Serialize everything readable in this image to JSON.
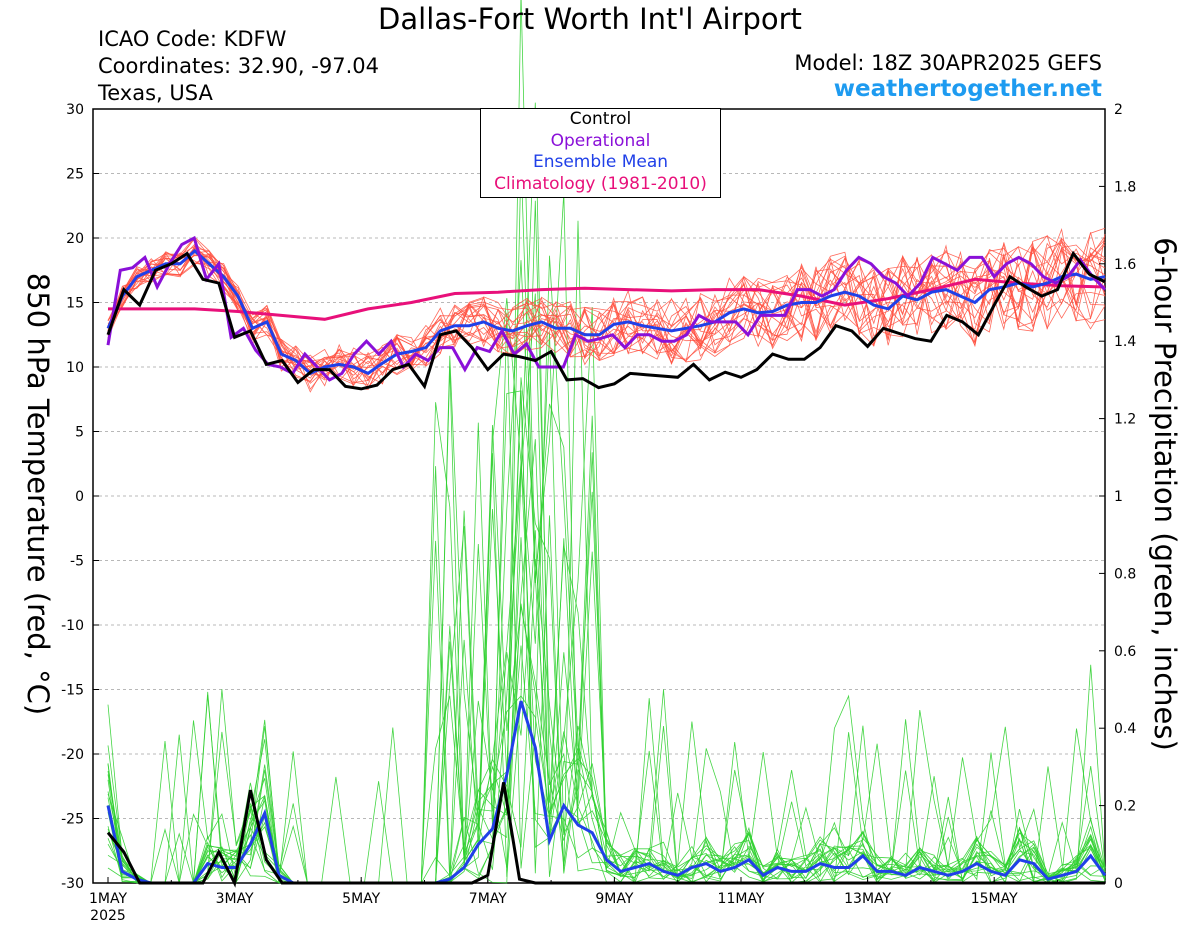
{
  "header": {
    "title": "Dallas-Fort Worth Int'l Airport",
    "icao": "ICAO Code: KDFW",
    "coordinates": "Coordinates: 32.90, -97.04",
    "region": "Texas, USA",
    "model": "Model: 18Z 30APR2025 GEFS",
    "brand": "weathertogether.net"
  },
  "colors": {
    "control": "#000000",
    "operational": "#8a10d8",
    "ensemble_mean": "#2040e8",
    "climatology": "#e8107a",
    "temperature_members": "#ff5040",
    "precip_members": "#30d030",
    "brand": "#1e9bf0"
  },
  "chart_data": {
    "type": "line",
    "title": "Dallas-Fort Worth Int'l Airport",
    "ylabel_left": "850 hPa Temperature (red, °C)",
    "ylabel_right": "6-hour Precipitation (green, inches)",
    "x_unit": "days since 1MAY 00Z, 6-hourly steps",
    "y_left_range": [
      -30,
      30
    ],
    "y_right_range": [
      0,
      2
    ],
    "x_range": [
      0,
      15.75
    ],
    "y_left_ticks": [
      "30",
      "25",
      "20",
      "15",
      "10",
      "5",
      "0",
      "-5",
      "-10",
      "-15",
      "-20",
      "-25",
      "-30"
    ],
    "y_right_ticks": [
      "2",
      "1.8",
      "1.6",
      "1.4",
      "1.2",
      "1",
      "0.8",
      "0.6",
      "0.4",
      "0.2",
      "0"
    ],
    "x_ticks": [
      {
        "x": 0,
        "label": "1MAY",
        "sub": "2025"
      },
      {
        "x": 2,
        "label": "3MAY"
      },
      {
        "x": 4,
        "label": "5MAY"
      },
      {
        "x": 6,
        "label": "7MAY"
      },
      {
        "x": 8,
        "label": "9MAY"
      },
      {
        "x": 10,
        "label": "11MAY"
      },
      {
        "x": 12,
        "label": "13MAY"
      },
      {
        "x": 14,
        "label": "15MAY"
      }
    ],
    "legend": [
      "Control",
      "Operational",
      "Ensemble Mean",
      "Climatology (1981-2010)"
    ],
    "grid": "horizontal dashed",
    "temperature": {
      "control": [
        12.5,
        16,
        14.8,
        17.5,
        18,
        18.8,
        16.8,
        16.5,
        12.3,
        12.8,
        10.2,
        10.5,
        8.8,
        9.8,
        9.8,
        8.5,
        8.3,
        8.6,
        9.8,
        10.2,
        8.5,
        12.5,
        12.8,
        11.5,
        9.8,
        11,
        10.8,
        10.5,
        11.2,
        9,
        9.1,
        8.4,
        8.7,
        9.5,
        9.4,
        9.3,
        9.2,
        10.2,
        9,
        9.6,
        9.2,
        9.8,
        11,
        10.6,
        10.6,
        11.5,
        13.2,
        12.8,
        11.6,
        13,
        12.6,
        12.2,
        12,
        14,
        13.5,
        12.5,
        14.8,
        17,
        16.2,
        15.5,
        16,
        18.8,
        17.2,
        16.6
      ],
      "operational": [
        11.7,
        17.5,
        17.7,
        18.5,
        16.2,
        18,
        19.5,
        20,
        16.8,
        18,
        12.3,
        13,
        11.3,
        10.2,
        10,
        9.5,
        11,
        10,
        9,
        9.5,
        11,
        12,
        11,
        12,
        10,
        11,
        10.5,
        11.5,
        11.5,
        9.8,
        11.5,
        11.2,
        12.8,
        11,
        11.8,
        10,
        10,
        10,
        12.5,
        12,
        12.2,
        12.5,
        11.5,
        12.5,
        12.5,
        12,
        12,
        12.5,
        14,
        13.5,
        13.5,
        13.5,
        12.5,
        14,
        14,
        14,
        16,
        16,
        15.5,
        16,
        17.5,
        18.5,
        18,
        17,
        16.5,
        15.5,
        16.5,
        18.5,
        18,
        17.5,
        18.5,
        18.5,
        17,
        18,
        18.5,
        18,
        17,
        16.5,
        17,
        18.3,
        17,
        16
      ],
      "ensemble_mean": [
        13,
        15.5,
        17,
        17.5,
        18,
        18,
        19,
        18,
        17,
        15.5,
        13,
        13.5,
        11,
        10.5,
        9.5,
        10,
        10.2,
        10,
        9.5,
        10.3,
        11,
        11.2,
        11.5,
        12.8,
        13.2,
        13.2,
        13.5,
        13,
        12.8,
        13.2,
        13.5,
        13,
        13,
        12.5,
        12.5,
        13.3,
        13.5,
        13.2,
        13,
        12.8,
        13,
        13.2,
        13.5,
        14.2,
        14.5,
        14.2,
        14.3,
        14.8,
        15,
        15,
        15.5,
        15.8,
        15.5,
        14.8,
        14.5,
        15.5,
        15.2,
        15.8,
        16,
        15.5,
        15,
        16,
        16.2,
        16.5,
        16.2,
        16.5,
        17,
        17.2,
        16.8,
        17
      ],
      "climatology": [
        14.5,
        14.5,
        14.5,
        14.3,
        14,
        13.7,
        14.5,
        15,
        15.7,
        15.8,
        16,
        16.1,
        16,
        15.9,
        16,
        16,
        15.5,
        14.8,
        15.3,
        16,
        16.8,
        16.5,
        16.3,
        16.2
      ],
      "members": 20
    },
    "precipitation": {
      "control": [
        0.13,
        0.08,
        0,
        0,
        0,
        0,
        0,
        0.08,
        0,
        0.24,
        0.06,
        0,
        0,
        0,
        0,
        0,
        0,
        0,
        0,
        0,
        0,
        0,
        0,
        0,
        0.02,
        0.26,
        0.01,
        0,
        0,
        0,
        0,
        0,
        0,
        0,
        0,
        0,
        0,
        0,
        0,
        0,
        0,
        0,
        0,
        0,
        0,
        0,
        0,
        0,
        0,
        0,
        0,
        0,
        0,
        0,
        0,
        0,
        0,
        0,
        0,
        0,
        0,
        0,
        0,
        0
      ],
      "ensemble_mean": [
        0.2,
        0.03,
        0.01,
        0,
        0,
        0,
        0,
        0.05,
        0.04,
        0.04,
        0.1,
        0.18,
        0.02,
        0,
        0,
        0,
        0,
        0,
        0,
        0,
        0,
        0,
        0,
        0,
        0.01,
        0.04,
        0.1,
        0.14,
        0.28,
        0.47,
        0.35,
        0.11,
        0.2,
        0.15,
        0.13,
        0.06,
        0.03,
        0.04,
        0.05,
        0.03,
        0.02,
        0.04,
        0.05,
        0.03,
        0.04,
        0.06,
        0.02,
        0.04,
        0.03,
        0.03,
        0.05,
        0.04,
        0.04,
        0.07,
        0.03,
        0.03,
        0.02,
        0.04,
        0.03,
        0.02,
        0.03,
        0.05,
        0.03,
        0.02,
        0.06,
        0.05,
        0.01,
        0.02,
        0.03,
        0.07,
        0.02
      ]
    },
    "annotations": []
  }
}
